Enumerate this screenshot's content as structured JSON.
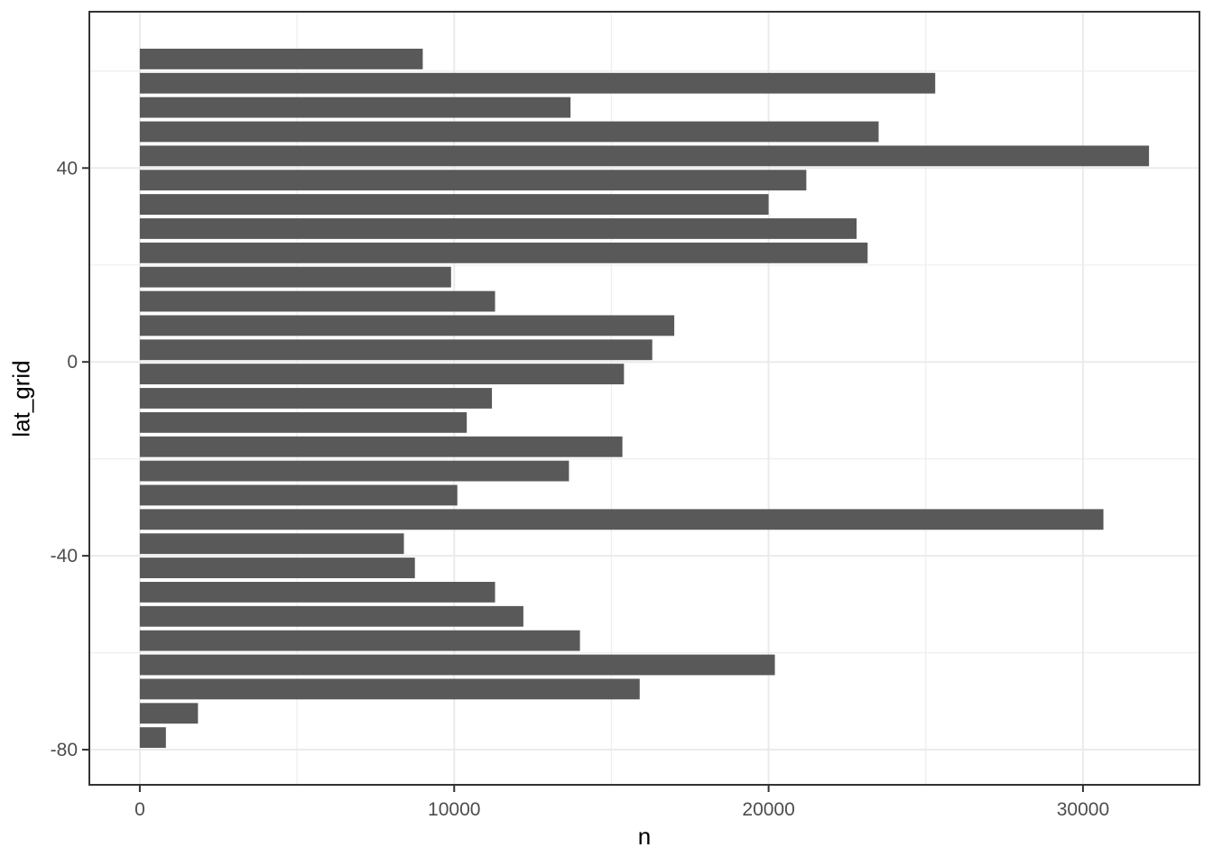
{
  "chart_data": {
    "type": "bar",
    "orientation": "horizontal",
    "title": "",
    "xlabel": "n",
    "ylabel": "lat_grid",
    "grid": true,
    "legend_position": "none",
    "categories": [
      62.5,
      57.5,
      52.5,
      47.5,
      42.5,
      37.5,
      32.5,
      27.5,
      22.5,
      17.5,
      12.5,
      7.5,
      2.5,
      -2.5,
      -7.5,
      -12.5,
      -17.5,
      -22.5,
      -27.5,
      -32.5,
      -37.5,
      -42.5,
      -47.5,
      -52.5,
      -57.5,
      -62.5,
      -67.5,
      -72.5,
      -77.5
    ],
    "values": [
      9000,
      25300,
      13700,
      23500,
      32100,
      21200,
      20000,
      22800,
      23150,
      9900,
      11300,
      17000,
      16300,
      15400,
      11200,
      10400,
      15350,
      13650,
      10100,
      30650,
      8400,
      8750,
      11300,
      12200,
      14000,
      20200,
      15900,
      1850,
      830
    ],
    "xlim": [
      -1605,
      33705
    ],
    "ylim": [
      -87.25,
      72.25
    ],
    "x_major_ticks": [
      0,
      10000,
      20000,
      30000
    ],
    "x_tick_labels": [
      "0",
      "10000",
      "20000",
      "30000"
    ],
    "x_minor_ticks": [
      5000,
      15000,
      25000
    ],
    "y_major_ticks": [
      40,
      0,
      -40,
      -80
    ],
    "y_tick_labels": [
      "40",
      "0",
      "-40",
      "-80"
    ],
    "y_minor_ticks": [
      60,
      20,
      -20,
      -60
    ],
    "bar_thickness_units": 4.25,
    "colors": {
      "bar_fill": "#595959",
      "panel_border": "#333333",
      "grid_major": "#EBEBEB",
      "grid_minor": "#EFEFEF",
      "tick_mark": "#333333",
      "axis_text": "#4D4D4D",
      "axis_title": "#000000",
      "background": "#FFFFFF"
    }
  }
}
